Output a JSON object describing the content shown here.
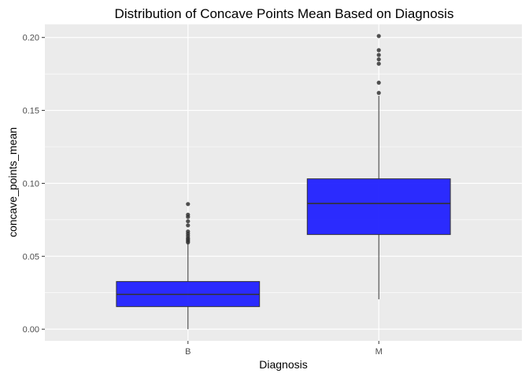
{
  "chart_data": {
    "type": "boxplot",
    "title": "Distribution of Concave Points Mean Based on Diagnosis",
    "xlabel": "Diagnosis",
    "ylabel": "concave_points_mean",
    "categories": [
      "B",
      "M"
    ],
    "ylim": [
      -0.008,
      0.209
    ],
    "yticks": [
      0.0,
      0.05,
      0.1,
      0.15,
      0.2
    ],
    "ytick_labels": [
      "0.00",
      "0.05",
      "0.10",
      "0.15",
      "0.20"
    ],
    "grid": true,
    "legend": "none",
    "box_color": "#1a1aff",
    "panel_color": "#ebebeb",
    "boxes": [
      {
        "category": "B",
        "whisker_low": 0.0,
        "q1": 0.0155,
        "median": 0.0239,
        "q3": 0.0327,
        "whisker_high": 0.0589,
        "outliers": [
          0.0595,
          0.0605,
          0.0615,
          0.0625,
          0.064,
          0.0655,
          0.067,
          0.0712,
          0.074,
          0.077,
          0.0785,
          0.0858
        ]
      },
      {
        "category": "M",
        "whisker_low": 0.0205,
        "q1": 0.0649,
        "median": 0.0862,
        "q3": 0.1031,
        "whisker_high": 0.16,
        "outliers": [
          0.162,
          0.169,
          0.182,
          0.185,
          0.188,
          0.1913,
          0.201
        ]
      }
    ]
  }
}
